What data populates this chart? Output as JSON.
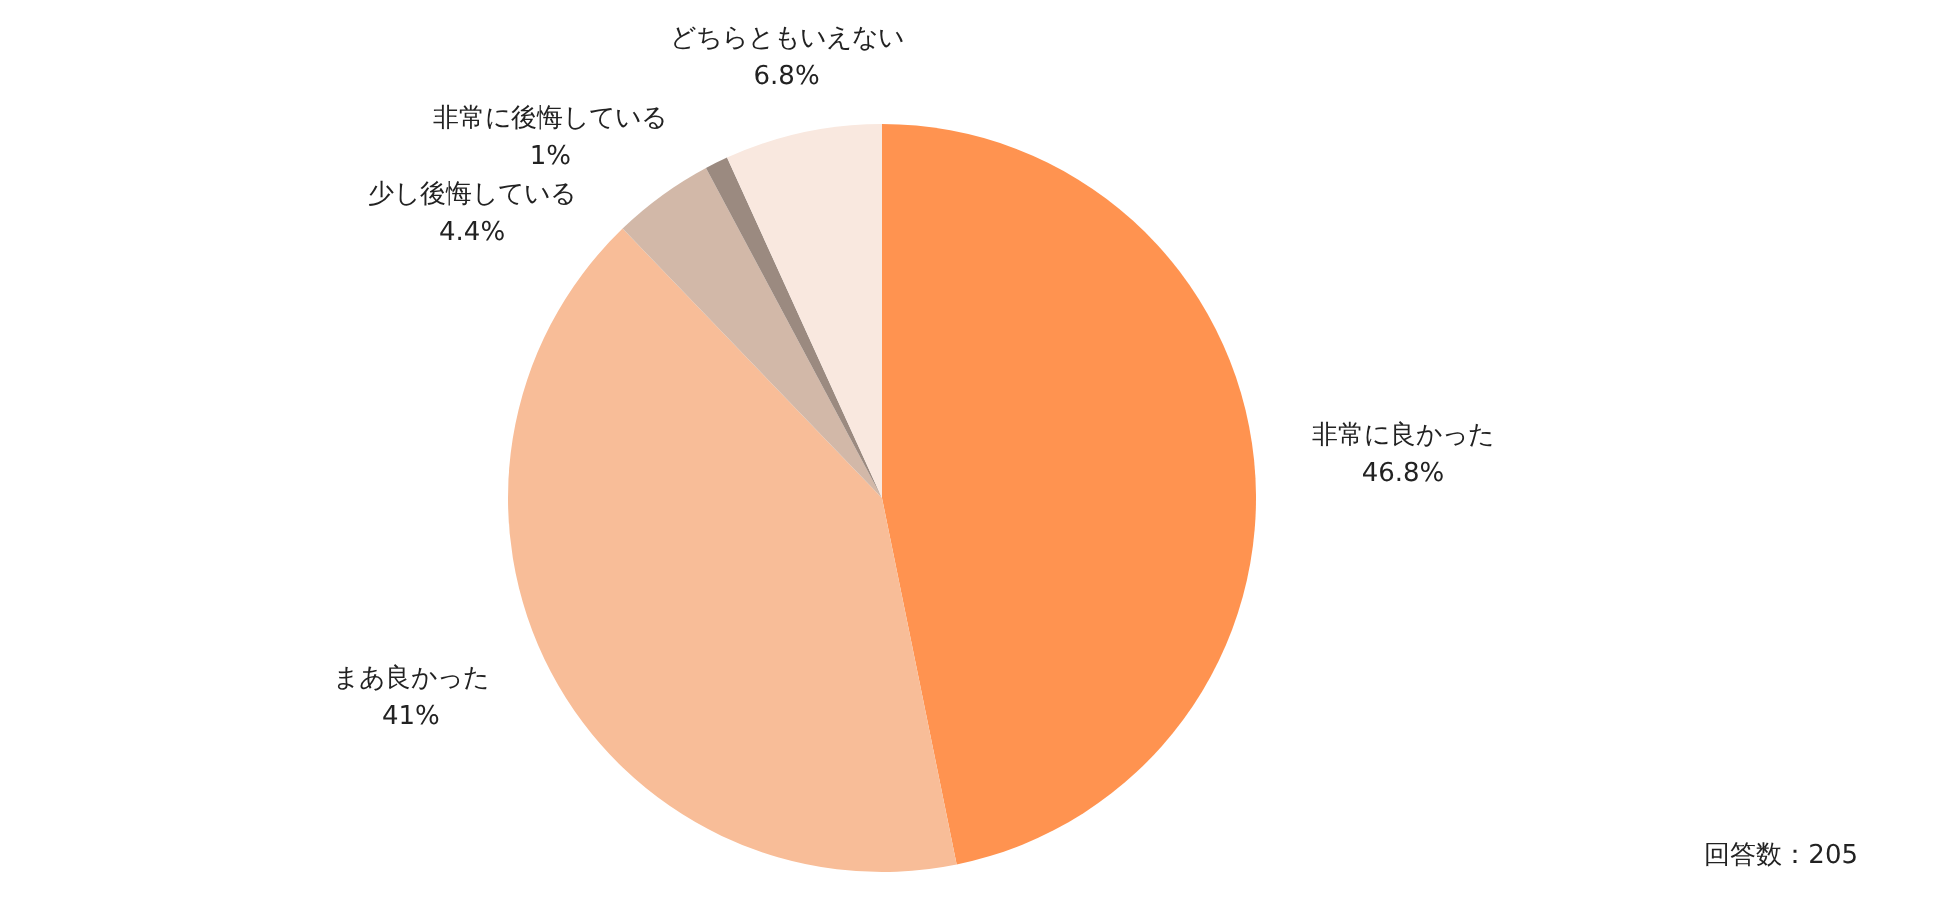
{
  "chart_data": {
    "type": "pie",
    "categories": [
      "非常に良かった",
      "まあ良かった",
      "少し後悔している",
      "非常に後悔している",
      "どちらともいえない"
    ],
    "values": [
      46.8,
      41,
      4.4,
      1,
      6.8
    ],
    "value_labels": [
      "46.8%",
      "41%",
      "4.4%",
      "1%",
      "6.8%"
    ],
    "colors": [
      "#ff9350",
      "#f8bd98",
      "#d2b8a8",
      "#9b8a80",
      "#f9e8df"
    ],
    "annotations": [
      "回答数：205"
    ]
  }
}
